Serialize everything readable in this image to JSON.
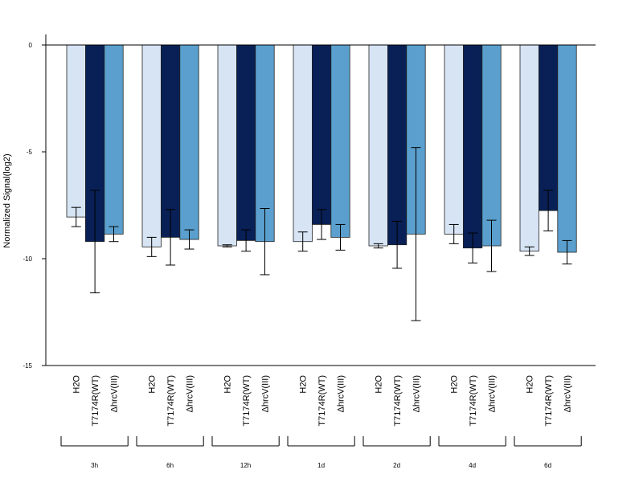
{
  "chart_data": {
    "type": "bar",
    "ylabel": "Normalized Signal(log2)",
    "ylim": [
      -15,
      0.5
    ],
    "yticks": [
      0,
      -5,
      -10,
      -15
    ],
    "series_names": [
      "H2O",
      "T7174R(WT)",
      "ΔhrcV(III)"
    ],
    "colors": [
      "#d6e4f4",
      "#082055",
      "#5a9fcd"
    ],
    "groups": [
      {
        "label": "3h",
        "values": [
          -8.05,
          -9.2,
          -8.85
        ],
        "errors": [
          0.45,
          2.4,
          0.35
        ]
      },
      {
        "label": "6h",
        "values": [
          -9.45,
          -9.0,
          -9.1
        ],
        "errors": [
          0.45,
          1.3,
          0.45
        ]
      },
      {
        "label": "12h",
        "values": [
          -9.4,
          -9.15,
          -9.2
        ],
        "errors": [
          0.05,
          0.5,
          1.55
        ]
      },
      {
        "label": "1d",
        "values": [
          -9.2,
          -8.4,
          -9.0
        ],
        "errors": [
          0.45,
          0.7,
          0.6
        ]
      },
      {
        "label": "2d",
        "values": [
          -9.4,
          -9.35,
          -8.85
        ],
        "errors": [
          0.1,
          1.1,
          4.05
        ]
      },
      {
        "label": "4d",
        "values": [
          -8.85,
          -9.5,
          -9.4
        ],
        "errors": [
          0.45,
          0.7,
          1.2
        ]
      },
      {
        "label": "6d",
        "values": [
          -9.65,
          -7.75,
          -9.7
        ],
        "errors": [
          0.2,
          0.95,
          0.55
        ]
      }
    ]
  }
}
